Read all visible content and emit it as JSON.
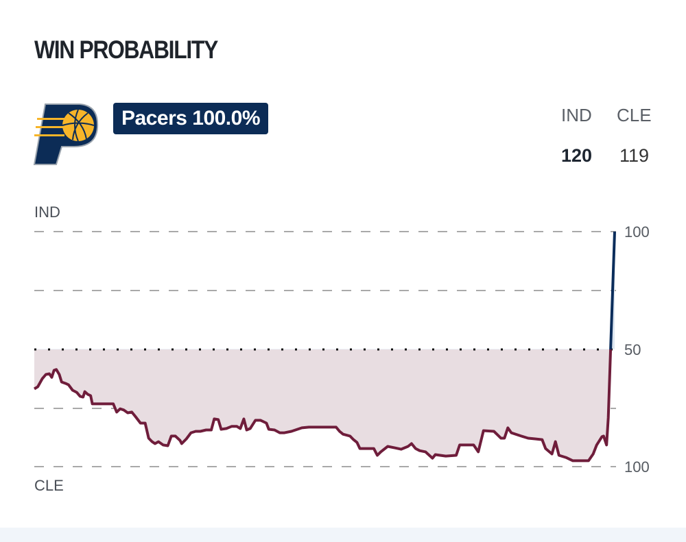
{
  "header": {
    "title": "WIN PROBABILITY"
  },
  "team": {
    "logo": "Indiana Pacers logo",
    "badge": "Pacers 100.0%",
    "badge_color": "#0c2c56"
  },
  "scoreboard": {
    "home_abbr": "IND",
    "away_abbr": "CLE",
    "home_score": "120",
    "away_score": "119"
  },
  "chart_data": {
    "type": "line",
    "top_label": "IND",
    "bottom_label": "CLE",
    "y_tick_labels": [
      "100",
      "50",
      "100"
    ],
    "ylim": [
      0,
      100
    ],
    "y_meaning": "IND win probability (%)",
    "grid": true,
    "colors": {
      "ind": "#0b2d5b",
      "cle": "#6f1d3b",
      "cle_fill": "#e8dde1",
      "ind_fill": "#dde6f0"
    },
    "points": [
      [
        0,
        33.1
      ],
      [
        0.6,
        34.0
      ],
      [
        1.4,
        37.5
      ],
      [
        2.0,
        39.2
      ],
      [
        2.6,
        39.5
      ],
      [
        3.0,
        38.0
      ],
      [
        3.4,
        41.0
      ],
      [
        3.8,
        41.3
      ],
      [
        4.3,
        39.2
      ],
      [
        4.7,
        36.0
      ],
      [
        5.4,
        35.4
      ],
      [
        5.9,
        34.8
      ],
      [
        6.6,
        32.5
      ],
      [
        7.3,
        31.6
      ],
      [
        7.9,
        29.9
      ],
      [
        8.4,
        29.6
      ],
      [
        8.7,
        31.9
      ],
      [
        9.2,
        30.8
      ],
      [
        9.7,
        30.2
      ],
      [
        10.0,
        26.7
      ],
      [
        11.8,
        26.7
      ],
      [
        13.6,
        26.7
      ],
      [
        14.2,
        23.2
      ],
      [
        14.8,
        24.6
      ],
      [
        15.4,
        24.1
      ],
      [
        16.1,
        22.9
      ],
      [
        16.8,
        23.2
      ],
      [
        17.4,
        21.4
      ],
      [
        18.3,
        18.5
      ],
      [
        19.1,
        18.5
      ],
      [
        19.7,
        12.1
      ],
      [
        20.3,
        10.6
      ],
      [
        20.8,
        9.8
      ],
      [
        21.4,
        10.6
      ],
      [
        22.2,
        9.2
      ],
      [
        23.0,
        8.9
      ],
      [
        23.6,
        13.0
      ],
      [
        24.3,
        13.0
      ],
      [
        25.1,
        11.2
      ],
      [
        25.4,
        9.8
      ],
      [
        26.2,
        11.8
      ],
      [
        27.0,
        14.4
      ],
      [
        27.8,
        15.0
      ],
      [
        28.6,
        15.0
      ],
      [
        29.6,
        15.6
      ],
      [
        30.5,
        15.6
      ],
      [
        31.0,
        20.3
      ],
      [
        31.7,
        20.0
      ],
      [
        32.2,
        15.9
      ],
      [
        33.1,
        16.2
      ],
      [
        34.0,
        17.1
      ],
      [
        34.9,
        17.1
      ],
      [
        35.5,
        16.2
      ],
      [
        36.1,
        20.3
      ],
      [
        36.6,
        15.6
      ],
      [
        37.2,
        16.2
      ],
      [
        38.1,
        19.7
      ],
      [
        39.0,
        19.7
      ],
      [
        40.0,
        18.5
      ],
      [
        40.4,
        15.9
      ],
      [
        41.4,
        15.6
      ],
      [
        42.3,
        14.4
      ],
      [
        43.1,
        14.4
      ],
      [
        44.3,
        15.0
      ],
      [
        46.1,
        16.5
      ],
      [
        47.3,
        16.8
      ],
      [
        52.0,
        16.8
      ],
      [
        52.6,
        15.0
      ],
      [
        53.2,
        13.8
      ],
      [
        54.4,
        13.0
      ],
      [
        55.0,
        11.5
      ],
      [
        55.6,
        10.3
      ],
      [
        56.1,
        7.7
      ],
      [
        56.7,
        7.7
      ],
      [
        58.5,
        7.7
      ],
      [
        59.1,
        4.8
      ],
      [
        59.7,
        6.3
      ],
      [
        60.9,
        8.6
      ],
      [
        62.1,
        8.0
      ],
      [
        63.2,
        7.4
      ],
      [
        64.4,
        8.6
      ],
      [
        65.0,
        9.8
      ],
      [
        65.7,
        7.7
      ],
      [
        66.4,
        6.8
      ],
      [
        67.4,
        6.3
      ],
      [
        68.6,
        3.6
      ],
      [
        69.1,
        5.1
      ],
      [
        70.9,
        4.5
      ],
      [
        72.7,
        4.8
      ],
      [
        73.3,
        9.2
      ],
      [
        75.7,
        9.2
      ],
      [
        76.5,
        6.3
      ],
      [
        77.4,
        15.3
      ],
      [
        79.2,
        15.0
      ],
      [
        79.8,
        13.6
      ],
      [
        80.4,
        12.1
      ],
      [
        81.0,
        12.1
      ],
      [
        81.6,
        16.5
      ],
      [
        82.2,
        14.4
      ],
      [
        83.9,
        13.0
      ],
      [
        85.1,
        12.1
      ],
      [
        86.3,
        11.8
      ],
      [
        87.5,
        11.5
      ],
      [
        88.1,
        7.7
      ],
      [
        89.2,
        5.4
      ],
      [
        89.8,
        10.6
      ],
      [
        90.4,
        4.8
      ],
      [
        91.6,
        3.9
      ],
      [
        92.8,
        2.5
      ],
      [
        94.6,
        2.5
      ],
      [
        95.5,
        2.5
      ],
      [
        96.3,
        5.4
      ],
      [
        96.9,
        9.2
      ],
      [
        97.8,
        12.7
      ],
      [
        98.1,
        13.0
      ],
      [
        98.6,
        9.2
      ],
      [
        98.9,
        20.8
      ],
      [
        99.3,
        50.0
      ],
      [
        100,
        100.0
      ]
    ]
  }
}
